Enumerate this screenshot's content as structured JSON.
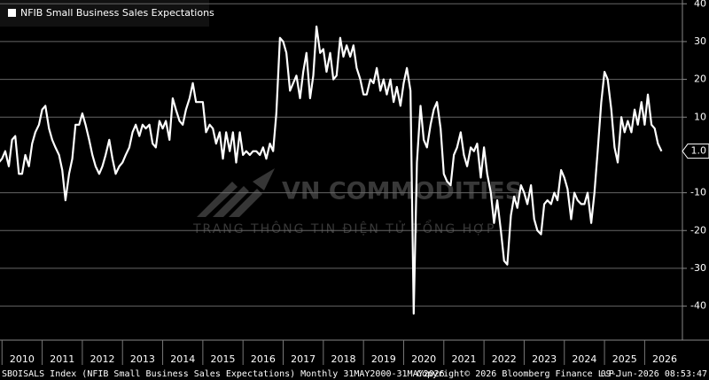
{
  "chart_data": {
    "type": "line",
    "legend": "NFIB Small Business Sales Expectations",
    "footer": {
      "left": "SBOISALS Index (NFIB Small Business Sales Expectations) Monthly 31MAY2000-31MAY2026",
      "middle": "Copyright© 2026 Bloomberg Finance L.P.",
      "right": "09-Jun-2026 08:53:47"
    },
    "annotations": [
      "VN COMMODITIES",
      "TRANG THÔNG TIN ĐIỆN TỬ TỔNG HỢP"
    ],
    "last_value_label": "1.0",
    "x": [
      2009.92,
      2010.0,
      2010.08,
      2010.17,
      2010.25,
      2010.33,
      2010.42,
      2010.5,
      2010.58,
      2010.67,
      2010.75,
      2010.83,
      2010.92,
      2011.0,
      2011.08,
      2011.17,
      2011.25,
      2011.33,
      2011.42,
      2011.5,
      2011.58,
      2011.67,
      2011.75,
      2011.83,
      2011.92,
      2012.0,
      2012.08,
      2012.17,
      2012.25,
      2012.33,
      2012.42,
      2012.5,
      2012.58,
      2012.67,
      2012.75,
      2012.83,
      2012.92,
      2013.0,
      2013.08,
      2013.17,
      2013.25,
      2013.33,
      2013.42,
      2013.5,
      2013.58,
      2013.67,
      2013.75,
      2013.83,
      2013.92,
      2014.0,
      2014.08,
      2014.17,
      2014.25,
      2014.33,
      2014.42,
      2014.5,
      2014.58,
      2014.67,
      2014.75,
      2014.83,
      2014.92,
      2015.0,
      2015.08,
      2015.17,
      2015.25,
      2015.33,
      2015.42,
      2015.5,
      2015.58,
      2015.67,
      2015.75,
      2015.83,
      2015.92,
      2016.0,
      2016.08,
      2016.17,
      2016.25,
      2016.33,
      2016.42,
      2016.5,
      2016.58,
      2016.67,
      2016.75,
      2016.83,
      2016.92,
      2017.0,
      2017.08,
      2017.17,
      2017.25,
      2017.33,
      2017.42,
      2017.5,
      2017.58,
      2017.67,
      2017.75,
      2017.83,
      2017.92,
      2018.0,
      2018.08,
      2018.17,
      2018.25,
      2018.33,
      2018.42,
      2018.5,
      2018.58,
      2018.67,
      2018.75,
      2018.83,
      2018.92,
      2019.0,
      2019.08,
      2019.17,
      2019.25,
      2019.33,
      2019.42,
      2019.5,
      2019.58,
      2019.67,
      2019.75,
      2019.83,
      2019.92,
      2020.0,
      2020.08,
      2020.17,
      2020.25,
      2020.33,
      2020.42,
      2020.5,
      2020.58,
      2020.67,
      2020.75,
      2020.83,
      2020.92,
      2021.0,
      2021.08,
      2021.17,
      2021.25,
      2021.33,
      2021.42,
      2021.5,
      2021.58,
      2021.67,
      2021.75,
      2021.83,
      2021.92,
      2022.0,
      2022.08,
      2022.17,
      2022.25,
      2022.33,
      2022.42,
      2022.5,
      2022.58,
      2022.67,
      2022.75,
      2022.83,
      2022.92,
      2023.0,
      2023.08,
      2023.17,
      2023.25,
      2023.33,
      2023.42,
      2023.5,
      2023.58,
      2023.67,
      2023.75,
      2023.83,
      2023.92,
      2024.0,
      2024.08,
      2024.17,
      2024.25,
      2024.33,
      2024.42,
      2024.5,
      2024.58,
      2024.67,
      2024.75,
      2024.83,
      2024.92,
      2025.0,
      2025.08,
      2025.17,
      2025.25,
      2025.33,
      2025.42,
      2025.5,
      2025.58,
      2025.67,
      2025.75,
      2025.83,
      2025.92,
      2026.0,
      2026.08,
      2026.17,
      2026.25,
      2026.33,
      2026.42
    ],
    "series": [
      {
        "name": "NFIB Small Business Sales Expectations",
        "color": "#ffffff",
        "values": [
          -2,
          -1,
          1,
          -3,
          4,
          5,
          -5,
          -5,
          0,
          -3,
          3,
          6,
          8,
          12,
          13,
          7,
          4,
          2,
          0,
          -4,
          -12,
          -5,
          -1,
          8,
          8,
          11,
          8,
          4,
          0,
          -3,
          -5,
          -3,
          0,
          4,
          -1,
          -5,
          -3,
          -2,
          0,
          2,
          6,
          8,
          5,
          8,
          7,
          8,
          3,
          2,
          9,
          7,
          9,
          4,
          15,
          12,
          9,
          8,
          12,
          15,
          19,
          14,
          14,
          14,
          6,
          8,
          7,
          3,
          6,
          -1,
          6,
          1,
          6,
          -2,
          6,
          0,
          1,
          0,
          1,
          1,
          0,
          2,
          -1,
          3,
          1,
          11,
          31,
          30,
          27,
          17,
          19,
          21,
          15,
          22,
          27,
          15,
          21,
          34,
          27,
          28,
          22,
          27,
          20,
          21,
          31,
          26,
          29,
          26,
          29,
          23,
          20,
          16,
          16,
          20,
          19,
          23,
          17,
          20,
          16,
          20,
          14,
          18,
          13,
          19,
          23,
          17,
          -42,
          -2,
          13,
          4,
          2,
          8,
          12,
          14,
          7,
          -5,
          -7,
          -8,
          0,
          2,
          6,
          0,
          -3,
          2,
          1,
          3,
          -6,
          2,
          -5,
          -10,
          -18,
          -12,
          -20,
          -28,
          -29,
          -16,
          -11,
          -14,
          -8,
          -10,
          -13,
          -8,
          -17,
          -20,
          -21,
          -13,
          -12,
          -13,
          -10,
          -12,
          -4,
          -6,
          -9,
          -17,
          -10,
          -12,
          -13,
          -13,
          -10,
          -18,
          -10,
          1,
          14,
          22,
          20,
          12,
          2,
          -2,
          10,
          6,
          9,
          6,
          12,
          8,
          14,
          8,
          16,
          8,
          7,
          3,
          1
        ]
      }
    ],
    "xlim": [
      2009.95,
      2026.94
    ],
    "xticks": [
      2010,
      2011,
      2012,
      2013,
      2014,
      2015,
      2016,
      2017,
      2018,
      2019,
      2020,
      2021,
      2022,
      2023,
      2024,
      2025,
      2026
    ],
    "ylim": [
      -49,
      41
    ],
    "yticks": [
      -40,
      -30,
      -20,
      -10,
      10,
      20,
      30,
      40
    ],
    "grid": true
  }
}
